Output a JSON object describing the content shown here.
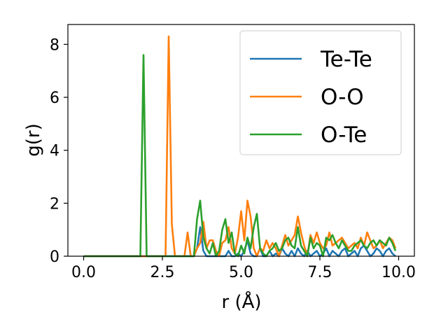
{
  "chart_data": {
    "type": "line",
    "xlabel": "r (Å)",
    "ylabel": "g(r)",
    "xlim": [
      -0.5,
      10.5
    ],
    "ylim": [
      0,
      8.75
    ],
    "xticks": [
      "0.0",
      "2.5",
      "5.0",
      "7.5",
      "10.0"
    ],
    "xtick_values": [
      0.0,
      2.5,
      5.0,
      7.5,
      10.0
    ],
    "yticks": [
      "0",
      "2",
      "4",
      "6",
      "8"
    ],
    "ytick_values": [
      0,
      2,
      4,
      6,
      8
    ],
    "grid": false,
    "legend_position": "top-right",
    "series": [
      {
        "name": "Te-Te",
        "color": "#1f77b4",
        "x": [
          0.0,
          3.5,
          3.6,
          3.7,
          3.8,
          3.9,
          4.5,
          4.6,
          4.7,
          4.8,
          4.9,
          5.0,
          5.1,
          5.2,
          5.3,
          5.4,
          5.5,
          5.6,
          5.7,
          5.8,
          5.9,
          6.0,
          6.1,
          6.2,
          6.3,
          6.4,
          6.5,
          6.6,
          6.7,
          6.8,
          6.9,
          7.0,
          7.1,
          7.2,
          7.3,
          7.4,
          7.5,
          7.6,
          7.7,
          7.8,
          7.9,
          8.0,
          8.1,
          8.2,
          8.3,
          8.4,
          8.5,
          8.6,
          8.7,
          8.8,
          8.9,
          9.0,
          9.1,
          9.2,
          9.3,
          9.4,
          9.5,
          9.6,
          9.7,
          9.8,
          9.9
        ],
        "y": [
          0.0,
          0.0,
          0.3,
          1.1,
          0.2,
          0.0,
          0.0,
          0.2,
          0.0,
          0.0,
          0.1,
          0.0,
          0.2,
          0.6,
          0.1,
          0.0,
          0.0,
          0.3,
          0.0,
          0.0,
          0.2,
          0.0,
          0.1,
          0.0,
          0.3,
          0.1,
          0.0,
          0.2,
          0.0,
          0.3,
          0.1,
          0.0,
          0.2,
          0.0,
          0.1,
          0.2,
          0.0,
          0.1,
          0.3,
          0.0,
          0.2,
          0.1,
          0.0,
          0.2,
          0.3,
          0.0,
          0.1,
          0.2,
          0.0,
          0.3,
          0.4,
          0.2,
          0.0,
          0.1,
          0.3,
          0.2,
          0.0,
          0.2,
          0.3,
          0.1,
          0.0
        ]
      },
      {
        "name": "O-O",
        "color": "#ff7f0e",
        "x": [
          0.0,
          2.6,
          2.7,
          2.8,
          2.9,
          3.0,
          3.2,
          3.3,
          3.4,
          3.5,
          3.6,
          3.7,
          3.8,
          3.9,
          4.0,
          4.1,
          4.2,
          4.3,
          4.4,
          4.5,
          4.6,
          4.7,
          4.8,
          4.9,
          5.0,
          5.1,
          5.2,
          5.3,
          5.4,
          5.5,
          5.6,
          5.7,
          5.8,
          5.9,
          6.0,
          6.1,
          6.2,
          6.3,
          6.4,
          6.5,
          6.6,
          6.7,
          6.8,
          6.9,
          7.0,
          7.1,
          7.2,
          7.3,
          7.4,
          7.5,
          7.6,
          7.7,
          7.8,
          7.9,
          8.0,
          8.1,
          8.2,
          8.3,
          8.4,
          8.5,
          8.6,
          8.7,
          8.8,
          8.9,
          9.0,
          9.1,
          9.2,
          9.3,
          9.4,
          9.5,
          9.6,
          9.7,
          9.8,
          9.9
        ],
        "y": [
          0.0,
          0.0,
          8.3,
          1.2,
          0.0,
          0.0,
          0.0,
          0.9,
          0.0,
          0.0,
          0.3,
          0.5,
          1.3,
          0.3,
          0.6,
          0.6,
          0.2,
          0.0,
          0.5,
          0.6,
          1.1,
          0.3,
          0.1,
          0.7,
          1.7,
          0.6,
          2.1,
          1.5,
          0.3,
          0.0,
          0.3,
          0.2,
          0.6,
          0.3,
          0.5,
          0.3,
          0.0,
          0.4,
          0.8,
          0.4,
          0.6,
          0.8,
          1.5,
          0.9,
          0.4,
          0.0,
          0.8,
          0.5,
          0.9,
          0.5,
          0.3,
          0.4,
          0.9,
          0.4,
          0.5,
          0.6,
          0.7,
          0.5,
          0.3,
          0.4,
          0.5,
          0.3,
          0.7,
          0.4,
          0.9,
          0.6,
          0.3,
          0.4,
          0.6,
          0.3,
          0.5,
          0.7,
          0.6,
          0.3
        ]
      },
      {
        "name": "O-Te",
        "color": "#2ca02c",
        "x": [
          0.0,
          1.8,
          1.9,
          2.0,
          3.5,
          3.6,
          3.7,
          3.8,
          3.9,
          4.0,
          4.1,
          4.2,
          4.3,
          4.4,
          4.5,
          4.6,
          4.7,
          4.8,
          4.9,
          5.0,
          5.1,
          5.2,
          5.3,
          5.4,
          5.5,
          5.6,
          5.7,
          5.8,
          5.9,
          6.0,
          6.1,
          6.2,
          6.3,
          6.4,
          6.5,
          6.6,
          6.7,
          6.8,
          6.9,
          7.0,
          7.1,
          7.2,
          7.3,
          7.4,
          7.5,
          7.6,
          7.7,
          7.8,
          7.9,
          8.0,
          8.1,
          8.2,
          8.3,
          8.4,
          8.5,
          8.6,
          8.7,
          8.8,
          8.9,
          9.0,
          9.1,
          9.2,
          9.3,
          9.4,
          9.5,
          9.6,
          9.7,
          9.8,
          9.9
        ],
        "y": [
          0.0,
          0.0,
          7.6,
          0.0,
          0.0,
          1.4,
          2.1,
          0.7,
          0.3,
          0.1,
          0.5,
          0.0,
          0.2,
          1.0,
          1.4,
          0.5,
          0.9,
          0.1,
          0.0,
          0.4,
          0.1,
          0.7,
          0.3,
          1.1,
          1.6,
          0.3,
          0.1,
          0.0,
          0.2,
          0.3,
          0.5,
          0.2,
          0.3,
          0.6,
          0.7,
          0.4,
          0.3,
          1.1,
          0.4,
          0.2,
          0.0,
          0.7,
          0.3,
          0.5,
          0.4,
          0.0,
          0.7,
          0.6,
          0.8,
          0.5,
          0.3,
          0.6,
          0.4,
          0.2,
          0.2,
          0.4,
          0.5,
          0.6,
          0.4,
          0.3,
          0.5,
          0.6,
          0.4,
          0.6,
          0.5,
          0.4,
          0.7,
          0.5,
          0.2
        ]
      }
    ]
  }
}
